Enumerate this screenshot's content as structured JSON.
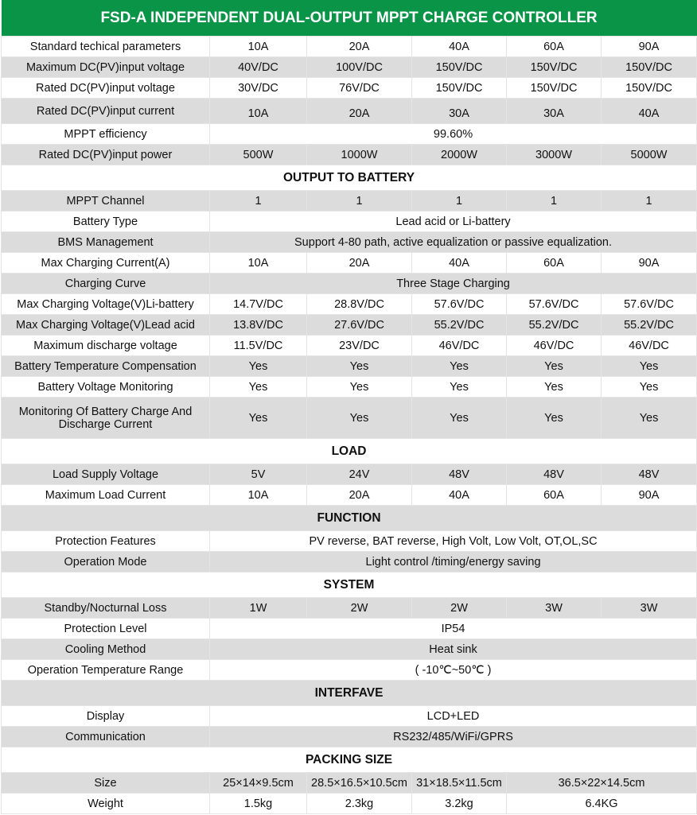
{
  "title": "FSD-A INDEPENDENT DUAL-OUTPUT MPPT CHARGE CONTROLLER",
  "header_color": "#0a9448",
  "rows": [
    {
      "label": "Standard techical parameters",
      "values": [
        "10A",
        "20A",
        "40A",
        "60A",
        "90A"
      ]
    },
    {
      "label": "Maximum DC(PV)input voltage",
      "values": [
        "40V/DC",
        "100V/DC",
        "150V/DC",
        "150V/DC",
        "150V/DC"
      ]
    },
    {
      "label": "Rated DC(PV)input voltage",
      "values": [
        "30V/DC",
        "76V/DC",
        "150V/DC",
        "150V/DC",
        "150V/DC"
      ]
    },
    {
      "label": "Rated DC(PV)input current",
      "values": [
        "10A",
        "20A",
        "30A",
        "30A",
        "40A"
      ]
    },
    {
      "label": "MPPT efficiency",
      "span": "99.60%"
    },
    {
      "label": "Rated DC(PV)input power",
      "values": [
        "500W",
        "1000W",
        "2000W",
        "3000W",
        "5000W"
      ]
    },
    {
      "section": "OUTPUT TO BATTERY"
    },
    {
      "label": "MPPT Channel",
      "values": [
        "1",
        "1",
        "1",
        "1",
        "1"
      ]
    },
    {
      "label": "Battery Type",
      "span": "Lead acid  or Li-battery"
    },
    {
      "label": "BMS Management",
      "span": "Support 4-80 path, active equalization or passive equalization."
    },
    {
      "label": "Max Charging Current(A)",
      "values": [
        "10A",
        "20A",
        "40A",
        "60A",
        "90A"
      ]
    },
    {
      "label": "Charging Curve",
      "span": "Three Stage Charging"
    },
    {
      "label": "Max Charging Voltage(V)Li-battery",
      "values": [
        "14.7V/DC",
        "28.8V/DC",
        "57.6V/DC",
        "57.6V/DC",
        "57.6V/DC"
      ]
    },
    {
      "label": "Max Charging Voltage(V)Lead acid",
      "values": [
        "13.8V/DC",
        "27.6V/DC",
        "55.2V/DC",
        "55.2V/DC",
        "55.2V/DC"
      ]
    },
    {
      "label": "Maximum discharge voltage",
      "values": [
        "11.5V/DC",
        "23V/DC",
        "46V/DC",
        "46V/DC",
        "46V/DC"
      ]
    },
    {
      "label": "Battery Temperature Compensation",
      "values": [
        "Yes",
        "Yes",
        "Yes",
        "Yes",
        "Yes"
      ]
    },
    {
      "label": "Battery Voltage Monitoring",
      "values": [
        "Yes",
        "Yes",
        "Yes",
        "Yes",
        "Yes"
      ]
    },
    {
      "label": "Monitoring Of Battery Charge And Discharge Current",
      "values": [
        "Yes",
        "Yes",
        "Yes",
        "Yes",
        "Yes"
      ]
    },
    {
      "section": "LOAD"
    },
    {
      "label": "Load Supply Voltage",
      "values": [
        "5V",
        "24V",
        "48V",
        "48V",
        "48V"
      ]
    },
    {
      "label": "Maximum Load Current",
      "values": [
        "10A",
        "20A",
        "40A",
        "60A",
        "90A"
      ]
    },
    {
      "section": "FUNCTION"
    },
    {
      "label": "Protection Features",
      "span": "PV reverse, BAT reverse, High Volt, Low Volt, OT,OL,SC"
    },
    {
      "label": "Operation Mode",
      "span": "Light control /timing/energy saving"
    },
    {
      "section": "SYSTEM"
    },
    {
      "label": "Standby/Nocturnal Loss",
      "values": [
        "1W",
        "2W",
        "2W",
        "3W",
        "3W"
      ]
    },
    {
      "label": "Protection Level",
      "span": "IP54"
    },
    {
      "label": "Cooling Method",
      "span": "Heat sink"
    },
    {
      "label": "Operation Temperature Range",
      "span": "( -10℃~50℃ )"
    },
    {
      "section": "INTERFAVE"
    },
    {
      "label": "Display",
      "span": "LCD+LED"
    },
    {
      "label": "Communication",
      "span": "RS232/485/WiFi/GPRS"
    },
    {
      "section": "PACKING SIZE"
    },
    {
      "label": "Size",
      "values": [
        "25×14×9.5cm",
        "28.5×16.5×10.5cm",
        "31×18.5×11.5cm",
        "36.5×22×14.5cm"
      ]
    },
    {
      "label": "Weight",
      "values": [
        "1.5kg",
        "2.3kg",
        "3.2kg",
        "6.4KG"
      ]
    }
  ]
}
